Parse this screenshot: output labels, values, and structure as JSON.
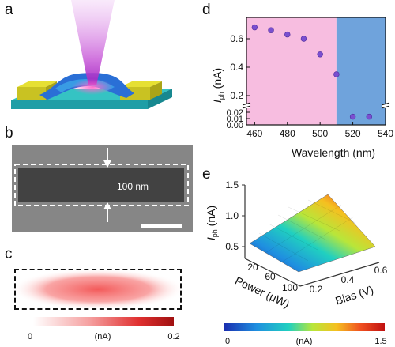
{
  "panels": {
    "a": "a",
    "b": "b",
    "c": "c",
    "d": "d",
    "e": "e"
  },
  "sem": {
    "width_label": "100 nm"
  },
  "map_c": {
    "colorbar_min": "0",
    "colorbar_max": "0.2",
    "unit": "(nA)"
  },
  "chart_d": {
    "y_label_main": "I",
    "y_label_sub": "ph",
    "y_label_unit": " (nA)",
    "x_label": "Wavelength (nm)",
    "x_ticks": [
      "460",
      "480",
      "500",
      "520",
      "540"
    ],
    "y_ticks_upper": [
      "0.2",
      "0.4",
      "0.6"
    ],
    "y_ticks_lower": [
      "0.00",
      "0.01",
      "0.02"
    ],
    "colors": {
      "visible_band": "#f7bde0",
      "blue_band": "#6fa3dc",
      "marker": "#7a4fd0"
    }
  },
  "chart_e": {
    "z_label_main": "I",
    "z_label_sub": "ph",
    "z_label_unit": " (nA)",
    "power_label": "Power (μW)",
    "bias_label": "Bias (V)",
    "z_ticks": [
      "0.5",
      "1.0",
      "1.5"
    ],
    "power_ticks": [
      "20",
      "60",
      "100"
    ],
    "bias_ticks": [
      "0.2",
      "0.4",
      "0.6"
    ],
    "colorbar_min": "0",
    "colorbar_max": "1.5",
    "unit": "(nA)"
  },
  "chart_data": [
    {
      "type": "scatter",
      "xlabel": "Wavelength (nm)",
      "ylabel": "Iph (nA)",
      "xlim": [
        455,
        540
      ],
      "y_axis_break": true,
      "ylim_lower": [
        0,
        0.025
      ],
      "ylim_upper": [
        0.15,
        0.75
      ],
      "band_boundary_x": 510,
      "x": [
        460,
        470,
        480,
        490,
        500,
        510,
        520,
        530
      ],
      "y": [
        0.68,
        0.66,
        0.63,
        0.6,
        0.49,
        0.35,
        0.013,
        0.013
      ],
      "grid": false
    },
    {
      "type": "heatmap",
      "xlabel": "Power (μW)",
      "ylabel": "Bias (V)",
      "zlabel": "Iph (nA)",
      "x": [
        10,
        110
      ],
      "y": [
        0.1,
        0.6
      ],
      "z_range": [
        0,
        1.5
      ],
      "corner_values": {
        "low_power_low_bias": 0.2,
        "high_power_high_bias": 1.25
      }
    }
  ]
}
